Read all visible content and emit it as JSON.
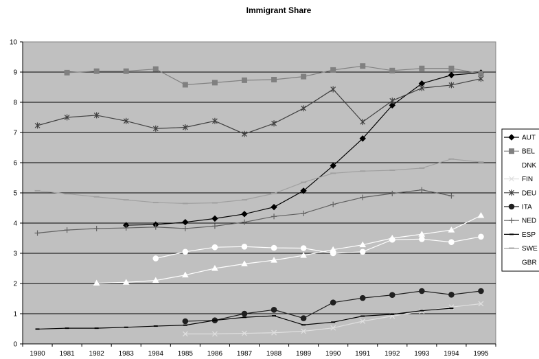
{
  "chart_data": {
    "type": "line",
    "title": "Immigrant Share",
    "xlabel": "",
    "ylabel": "",
    "ylim": [
      0,
      10
    ],
    "yticks": [
      "0",
      "1",
      "2",
      "3",
      "4",
      "5",
      "6",
      "7",
      "8",
      "9",
      "10"
    ],
    "categories": [
      "1980",
      "1981",
      "1982",
      "1983",
      "1984",
      "1985",
      "1986",
      "1987",
      "1988",
      "1989",
      "1990",
      "1991",
      "1992",
      "1993",
      "1994",
      "1995"
    ],
    "grid": true,
    "plot_background": "#c0c0c0",
    "legend_position": "right",
    "series": [
      {
        "name": "AUT",
        "color": "#000000",
        "marker": "diamond",
        "values": [
          null,
          null,
          null,
          3.93,
          3.95,
          4.03,
          4.15,
          4.3,
          4.53,
          5.07,
          5.9,
          6.8,
          7.9,
          8.62,
          8.9,
          8.98
        ]
      },
      {
        "name": "BEL",
        "color": "#808080",
        "marker": "square",
        "values": [
          null,
          8.98,
          9.03,
          9.03,
          9.1,
          8.58,
          8.65,
          8.73,
          8.75,
          8.85,
          9.07,
          9.2,
          9.05,
          9.12,
          9.12,
          8.95
        ]
      },
      {
        "name": "DNK",
        "color": "#ffffff",
        "marker": "triangle",
        "values": [
          null,
          null,
          2.01,
          2.04,
          2.1,
          2.28,
          2.5,
          2.65,
          2.77,
          2.93,
          3.12,
          3.28,
          3.5,
          3.63,
          3.77,
          4.25
        ]
      },
      {
        "name": "FIN",
        "color": "#e0e0e0",
        "marker": "x",
        "values": [
          null,
          null,
          null,
          null,
          null,
          0.33,
          0.33,
          0.35,
          0.37,
          0.42,
          0.53,
          0.75,
          0.92,
          1.08,
          1.22,
          1.33
        ]
      },
      {
        "name": "DEU",
        "color": "#404040",
        "marker": "star",
        "values": [
          7.23,
          7.5,
          7.57,
          7.38,
          7.13,
          7.17,
          7.38,
          6.95,
          7.3,
          7.8,
          8.43,
          7.35,
          8.05,
          8.47,
          8.57,
          8.78
        ]
      },
      {
        "name": "ITA",
        "color": "#202020",
        "marker": "circle",
        "values": [
          null,
          null,
          null,
          null,
          null,
          0.75,
          0.78,
          1.0,
          1.13,
          0.85,
          1.37,
          1.52,
          1.62,
          1.75,
          1.63,
          1.75
        ]
      },
      {
        "name": "NED",
        "color": "#606060",
        "marker": "plus",
        "values": [
          3.67,
          3.77,
          3.82,
          3.84,
          3.87,
          3.82,
          3.9,
          4.03,
          4.22,
          4.32,
          4.62,
          4.85,
          4.98,
          5.1,
          4.9,
          null
        ]
      },
      {
        "name": "ESP",
        "color": "#000000",
        "marker": "dash",
        "values": [
          0.49,
          0.52,
          0.52,
          0.55,
          0.59,
          0.62,
          0.78,
          0.88,
          0.93,
          0.63,
          0.72,
          0.92,
          0.98,
          1.1,
          1.18,
          null
        ]
      },
      {
        "name": "SWE",
        "color": "#a0a0a0",
        "marker": "bar",
        "values": [
          5.07,
          4.97,
          4.87,
          4.77,
          4.68,
          4.65,
          4.67,
          4.77,
          4.98,
          5.35,
          5.65,
          5.72,
          5.75,
          5.82,
          6.12,
          6.02
        ]
      },
      {
        "name": "GBR",
        "color": "#ffffff",
        "marker": "circle",
        "values": [
          null,
          null,
          null,
          null,
          2.83,
          3.05,
          3.2,
          3.22,
          3.18,
          3.17,
          3.0,
          3.05,
          3.45,
          3.47,
          3.37,
          3.55
        ]
      }
    ]
  }
}
